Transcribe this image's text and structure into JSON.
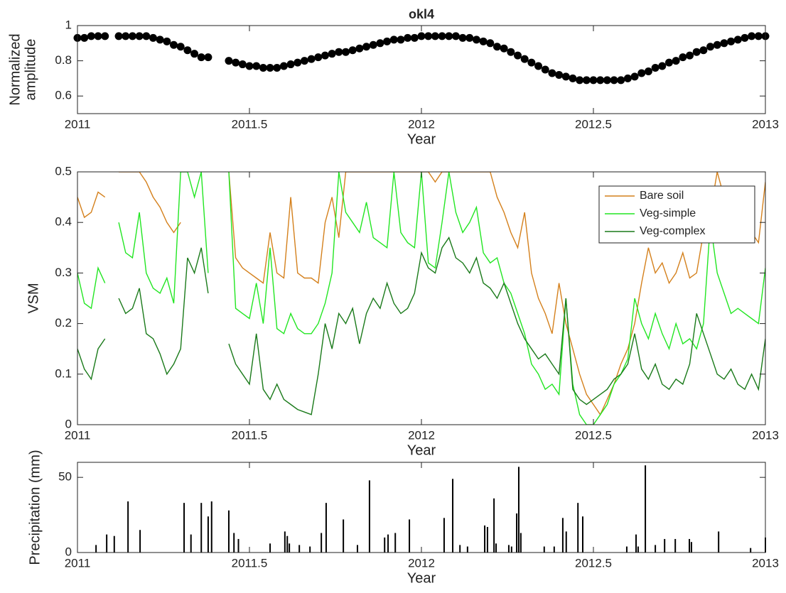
{
  "chart_data": [
    {
      "type": "scatter",
      "title": "okl4",
      "ylabel": [
        "Normalized",
        "amplitude"
      ],
      "xlabel": "Year",
      "color": "#000000",
      "xlim": [
        2011,
        2013
      ],
      "xticks": [
        2011,
        2011.5,
        2012,
        2012.5,
        2013
      ],
      "ylim": [
        0.5,
        1
      ],
      "yticks": [
        0.6,
        0.8,
        1
      ],
      "x": [
        2011,
        2011.02,
        2011.04,
        2011.06,
        2011.08,
        2011.12,
        2011.14,
        2011.16,
        2011.18,
        2011.2,
        2011.22,
        2011.24,
        2011.26,
        2011.28,
        2011.3,
        2011.32,
        2011.34,
        2011.36,
        2011.38,
        2011.44,
        2011.46,
        2011.48,
        2011.5,
        2011.52,
        2011.54,
        2011.56,
        2011.58,
        2011.6,
        2011.62,
        2011.64,
        2011.66,
        2011.68,
        2011.7,
        2011.72,
        2011.74,
        2011.76,
        2011.78,
        2011.8,
        2011.82,
        2011.84,
        2011.86,
        2011.88,
        2011.9,
        2011.92,
        2011.94,
        2011.96,
        2011.98,
        2012,
        2012.02,
        2012.04,
        2012.06,
        2012.08,
        2012.1,
        2012.12,
        2012.14,
        2012.16,
        2012.18,
        2012.2,
        2012.22,
        2012.24,
        2012.26,
        2012.28,
        2012.3,
        2012.32,
        2012.34,
        2012.36,
        2012.38,
        2012.4,
        2012.42,
        2012.44,
        2012.46,
        2012.48,
        2012.5,
        2012.52,
        2012.54,
        2012.56,
        2012.58,
        2012.6,
        2012.62,
        2012.64,
        2012.66,
        2012.68,
        2012.7,
        2012.72,
        2012.74,
        2012.76,
        2012.78,
        2012.8,
        2012.82,
        2012.84,
        2012.86,
        2012.88,
        2012.9,
        2012.92,
        2012.94,
        2012.96,
        2012.98,
        2013
      ],
      "values": [
        0.93,
        0.93,
        0.94,
        0.94,
        0.94,
        0.94,
        0.94,
        0.94,
        0.94,
        0.94,
        0.93,
        0.92,
        0.91,
        0.89,
        0.88,
        0.86,
        0.84,
        0.82,
        0.82,
        0.8,
        0.79,
        0.78,
        0.77,
        0.77,
        0.76,
        0.76,
        0.76,
        0.77,
        0.78,
        0.79,
        0.8,
        0.81,
        0.82,
        0.83,
        0.84,
        0.85,
        0.85,
        0.86,
        0.87,
        0.88,
        0.89,
        0.9,
        0.91,
        0.92,
        0.92,
        0.93,
        0.93,
        0.94,
        0.94,
        0.94,
        0.94,
        0.94,
        0.94,
        0.93,
        0.93,
        0.92,
        0.91,
        0.9,
        0.88,
        0.87,
        0.85,
        0.83,
        0.81,
        0.79,
        0.77,
        0.75,
        0.73,
        0.72,
        0.71,
        0.7,
        0.69,
        0.69,
        0.69,
        0.69,
        0.69,
        0.69,
        0.69,
        0.7,
        0.71,
        0.73,
        0.74,
        0.76,
        0.77,
        0.79,
        0.8,
        0.82,
        0.83,
        0.85,
        0.86,
        0.88,
        0.89,
        0.9,
        0.91,
        0.92,
        0.93,
        0.94,
        0.94,
        0.94
      ]
    },
    {
      "type": "line",
      "ylabel": "VSM",
      "xlabel": "Year",
      "legend": "upper right",
      "xlim": [
        2011,
        2013
      ],
      "xticks": [
        2011,
        2011.5,
        2012,
        2012.5,
        2013
      ],
      "ylim": [
        0,
        0.5
      ],
      "yticks": [
        0,
        0.1,
        0.2,
        0.3,
        0.4,
        0.5
      ],
      "x": [
        2011,
        2011.02,
        2011.04,
        2011.06,
        2011.08,
        2011.1,
        2011.12,
        2011.14,
        2011.16,
        2011.18,
        2011.2,
        2011.22,
        2011.24,
        2011.26,
        2011.28,
        2011.3,
        2011.32,
        2011.34,
        2011.36,
        2011.38,
        2011.4,
        2011.42,
        2011.44,
        2011.46,
        2011.48,
        2011.5,
        2011.52,
        2011.54,
        2011.56,
        2011.58,
        2011.6,
        2011.62,
        2011.64,
        2011.66,
        2011.68,
        2011.7,
        2011.72,
        2011.74,
        2011.76,
        2011.78,
        2011.8,
        2011.82,
        2011.84,
        2011.86,
        2011.88,
        2011.9,
        2011.92,
        2011.94,
        2011.96,
        2011.98,
        2012,
        2012.02,
        2012.04,
        2012.06,
        2012.08,
        2012.1,
        2012.12,
        2012.14,
        2012.16,
        2012.18,
        2012.2,
        2012.22,
        2012.24,
        2012.26,
        2012.28,
        2012.3,
        2012.32,
        2012.34,
        2012.36,
        2012.38,
        2012.4,
        2012.42,
        2012.44,
        2012.46,
        2012.48,
        2012.5,
        2012.52,
        2012.54,
        2012.56,
        2012.58,
        2012.6,
        2012.62,
        2012.64,
        2012.66,
        2012.68,
        2012.7,
        2012.72,
        2012.74,
        2012.76,
        2012.78,
        2012.8,
        2012.82,
        2012.84,
        2012.86,
        2012.88,
        2012.9,
        2012.92,
        2012.94,
        2012.96,
        2012.98,
        2013
      ],
      "series": [
        {
          "name": "Bare soil",
          "color": "#d4801c",
          "values": [
            0.45,
            0.41,
            0.42,
            0.46,
            0.45,
            null,
            0.5,
            0.5,
            0.5,
            0.5,
            0.48,
            0.45,
            0.43,
            0.4,
            0.38,
            0.4,
            null,
            null,
            null,
            null,
            null,
            null,
            0.5,
            0.33,
            0.31,
            0.3,
            0.29,
            0.28,
            0.38,
            0.3,
            0.29,
            0.45,
            0.3,
            0.29,
            0.29,
            0.28,
            0.4,
            0.45,
            0.37,
            0.5,
            0.5,
            0.5,
            0.5,
            0.5,
            0.5,
            0.5,
            0.5,
            0.5,
            0.5,
            0.5,
            0.5,
            0.5,
            0.48,
            0.5,
            0.5,
            0.5,
            0.5,
            0.5,
            0.5,
            0.5,
            0.5,
            0.45,
            0.42,
            0.38,
            0.35,
            0.42,
            0.3,
            0.25,
            0.22,
            0.18,
            0.28,
            0.2,
            0.15,
            0.1,
            0.06,
            0.04,
            0.02,
            0.05,
            0.08,
            0.12,
            0.15,
            0.2,
            0.28,
            0.35,
            0.3,
            0.32,
            0.28,
            0.3,
            0.34,
            0.29,
            0.3,
            0.38,
            0.42,
            0.5,
            0.45,
            0.4,
            0.38,
            0.37,
            0.38,
            0.36,
            0.48
          ]
        },
        {
          "name": "Veg-simple",
          "color": "#22e622",
          "values": [
            0.3,
            0.24,
            0.23,
            0.31,
            0.28,
            null,
            0.4,
            0.34,
            0.33,
            0.42,
            0.3,
            0.27,
            0.26,
            0.29,
            0.24,
            0.5,
            0.5,
            0.45,
            0.5,
            0.3,
            null,
            null,
            0.5,
            0.23,
            0.22,
            0.21,
            0.28,
            0.2,
            0.35,
            0.19,
            0.18,
            0.22,
            0.19,
            0.18,
            0.18,
            0.2,
            0.24,
            0.3,
            0.5,
            0.42,
            0.4,
            0.38,
            0.44,
            0.37,
            0.36,
            0.35,
            0.5,
            0.38,
            0.36,
            0.35,
            0.5,
            0.32,
            0.31,
            0.4,
            0.5,
            0.42,
            0.38,
            0.4,
            0.43,
            0.34,
            0.32,
            0.33,
            0.28,
            0.26,
            0.22,
            0.18,
            0.12,
            0.1,
            0.07,
            0.08,
            0.06,
            0.25,
            0.08,
            0.02,
            0,
            0,
            0.02,
            0.04,
            0.08,
            0.1,
            0.13,
            0.25,
            0.2,
            0.17,
            0.22,
            0.18,
            0.15,
            0.2,
            0.16,
            0.17,
            0.15,
            0.2,
            0.4,
            0.3,
            0.26,
            0.22,
            0.23,
            0.22,
            0.21,
            0.2,
            0.31
          ]
        },
        {
          "name": "Veg-complex",
          "color": "#1a7a1a",
          "values": [
            0.15,
            0.11,
            0.09,
            0.15,
            0.17,
            null,
            0.25,
            0.22,
            0.23,
            0.27,
            0.18,
            0.17,
            0.14,
            0.1,
            0.12,
            0.15,
            0.33,
            0.3,
            0.35,
            0.26,
            null,
            null,
            0.16,
            0.12,
            0.1,
            0.08,
            0.18,
            0.07,
            0.05,
            0.08,
            0.05,
            0.04,
            0.03,
            0.025,
            0.02,
            0.1,
            0.2,
            0.15,
            0.22,
            0.2,
            0.23,
            0.16,
            0.22,
            0.25,
            0.23,
            0.28,
            0.24,
            0.22,
            0.23,
            0.26,
            0.34,
            0.31,
            0.3,
            0.35,
            0.37,
            0.33,
            0.32,
            0.3,
            0.33,
            0.28,
            0.27,
            0.25,
            0.28,
            0.24,
            0.2,
            0.17,
            0.15,
            0.13,
            0.14,
            0.12,
            0.1,
            0.25,
            0.07,
            0.05,
            0.04,
            0.05,
            0.06,
            0.07,
            0.09,
            0.1,
            0.12,
            0.18,
            0.11,
            0.09,
            0.12,
            0.08,
            0.07,
            0.09,
            0.08,
            0.12,
            0.22,
            0.18,
            0.14,
            0.1,
            0.09,
            0.11,
            0.08,
            0.07,
            0.1,
            0.07,
            0.17
          ]
        }
      ]
    },
    {
      "type": "bar",
      "ylabel": "Precipitation (mm)",
      "xlabel": "Year",
      "color": "#000000",
      "xlim": [
        2011,
        2013
      ],
      "xticks": [
        2011,
        2011.5,
        2012,
        2012.5,
        2013
      ],
      "ylim": [
        0,
        60
      ],
      "yticks": [
        0,
        50
      ],
      "x": [
        2011.054,
        2011.085,
        2011.107,
        2011.147,
        2011.182,
        2011.31,
        2011.33,
        2011.36,
        2011.38,
        2011.39,
        2011.44,
        2011.455,
        2011.468,
        2011.56,
        2011.603,
        2011.61,
        2011.616,
        2011.645,
        2011.676,
        2011.709,
        2011.723,
        2011.773,
        2011.814,
        2011.849,
        2011.893,
        2011.903,
        2011.924,
        2011.965,
        2012.066,
        2012.091,
        2012.112,
        2012.134,
        2012.184,
        2012.192,
        2012.211,
        2012.217,
        2012.254,
        2012.262,
        2012.277,
        2012.283,
        2012.289,
        2012.357,
        2012.386,
        2012.411,
        2012.421,
        2012.455,
        2012.469,
        2012.597,
        2012.624,
        2012.63,
        2012.651,
        2012.68,
        2012.707,
        2012.738,
        2012.779,
        2012.785,
        2012.864,
        2012.957,
        2013
      ],
      "values": [
        5,
        12,
        11,
        34,
        15,
        33,
        12,
        33,
        24,
        34,
        28,
        13,
        9,
        6,
        14,
        11,
        6,
        5,
        4,
        13,
        33,
        22,
        5,
        48,
        10,
        12,
        13,
        22,
        23,
        49,
        5,
        4,
        18,
        17,
        36,
        6,
        5,
        4,
        26,
        57,
        13,
        4,
        4,
        23,
        14,
        33,
        24,
        4,
        12,
        4,
        58,
        5,
        9,
        9,
        9,
        7,
        14,
        3,
        10
      ]
    }
  ]
}
